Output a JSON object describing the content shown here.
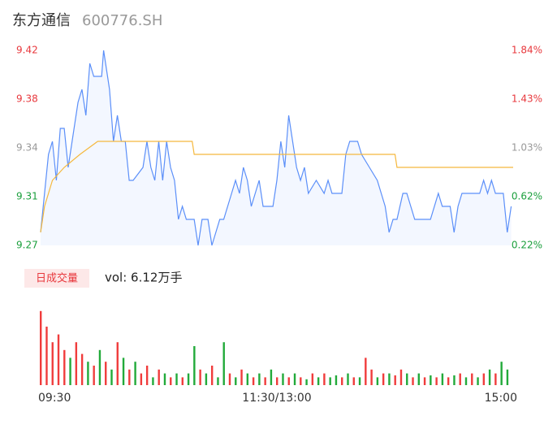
{
  "chart_data": [
    {
      "type": "line",
      "title": "东方通信",
      "subtitle": "600776.SH",
      "xlim": [
        0,
        240
      ],
      "xticks": [
        {
          "value": 0,
          "label": "09:30"
        },
        {
          "value": 120,
          "label": "11:30/13:00"
        },
        {
          "value": 240,
          "label": "15:00"
        }
      ],
      "ylim": [
        9.27,
        9.42
      ],
      "yticks": [
        9.42,
        {
          "value": 9.3825,
          "label": "9.38"
        },
        {
          "value": 9.345,
          "label": "9.34"
        },
        {
          "value": 9.3075,
          "label": "9.31"
        },
        9.27
      ],
      "y2lim": [
        0.22,
        1.84
      ],
      "y2ticks": [
        {
          "value": 1.84,
          "label": "1.84%"
        },
        {
          "value": 1.435,
          "label": "1.43%"
        },
        {
          "value": 1.03,
          "label": "1.03%"
        },
        {
          "value": 0.625,
          "label": "0.62%"
        },
        {
          "value": 0.22,
          "label": "0.22%"
        }
      ],
      "up_color": "#e8383d",
      "flat_color": "#999999",
      "down_color": "#1a9f3c",
      "series": [
        {
          "name": "price",
          "color": "#5b8ff9",
          "fill": "#f3f7ff",
          "x": [
            0,
            2,
            4,
            6,
            8,
            10,
            12,
            14,
            16,
            19,
            21,
            23,
            25,
            27,
            29,
            31,
            32,
            35,
            37,
            39,
            41,
            43,
            45,
            47,
            52,
            54,
            56,
            58,
            60,
            62,
            64,
            66,
            68,
            70,
            72,
            74,
            78,
            80,
            82,
            85,
            87,
            89,
            91,
            93,
            95,
            97,
            99,
            101,
            103,
            105,
            107,
            111,
            113,
            115,
            118,
            120,
            122,
            124,
            126,
            128,
            130,
            132,
            134,
            136,
            140,
            144,
            146,
            148,
            153,
            155,
            157,
            161,
            163,
            167,
            171,
            173,
            175,
            177,
            179,
            181,
            184,
            186,
            188,
            190,
            194,
            198,
            202,
            204,
            208,
            210,
            212,
            214,
            219,
            223,
            225,
            227,
            229,
            231,
            235,
            237,
            239
          ],
          "values": [
            9.28,
            9.31,
            9.34,
            9.35,
            9.32,
            9.36,
            9.36,
            9.33,
            9.35,
            9.38,
            9.39,
            9.37,
            9.41,
            9.4,
            9.4,
            9.4,
            9.42,
            9.39,
            9.35,
            9.37,
            9.35,
            9.35,
            9.32,
            9.32,
            9.33,
            9.35,
            9.33,
            9.32,
            9.35,
            9.32,
            9.35,
            9.33,
            9.32,
            9.29,
            9.3,
            9.29,
            9.29,
            9.27,
            9.29,
            9.29,
            9.27,
            9.28,
            9.29,
            9.29,
            9.3,
            9.31,
            9.32,
            9.31,
            9.33,
            9.32,
            9.3,
            9.32,
            9.3,
            9.3,
            9.3,
            9.32,
            9.35,
            9.33,
            9.37,
            9.35,
            9.33,
            9.32,
            9.33,
            9.31,
            9.32,
            9.31,
            9.32,
            9.31,
            9.31,
            9.34,
            9.35,
            9.35,
            9.34,
            9.33,
            9.32,
            9.31,
            9.3,
            9.28,
            9.29,
            9.29,
            9.31,
            9.31,
            9.3,
            9.29,
            9.29,
            9.29,
            9.31,
            9.3,
            9.3,
            9.28,
            9.3,
            9.31,
            9.31,
            9.31,
            9.32,
            9.31,
            9.32,
            9.31,
            9.31,
            9.28,
            9.3
          ]
        },
        {
          "name": "average",
          "color": "#f5b83d",
          "x": [
            0,
            2,
            4,
            6,
            12,
            20,
            29,
            77,
            78,
            180,
            181,
            240
          ],
          "values": [
            9.28,
            9.3,
            9.31,
            9.32,
            9.33,
            9.34,
            9.35,
            9.35,
            9.34,
            9.34,
            9.33,
            9.33
          ]
        }
      ]
    },
    {
      "type": "bar",
      "title": "日成交量",
      "annotation": "vol: 6.12万手",
      "ylim": [
        0,
        2000
      ],
      "up_color": "#f03c3c",
      "down_color": "#22aa3a",
      "x": [
        0,
        3,
        6,
        9,
        12,
        15,
        18,
        21,
        24,
        27,
        30,
        33,
        36,
        39,
        42,
        45,
        48,
        51,
        54,
        57,
        60,
        63,
        66,
        69,
        72,
        75,
        78,
        81,
        84,
        87,
        90,
        93,
        96,
        99,
        102,
        105,
        108,
        111,
        114,
        117,
        120,
        123,
        126,
        129,
        132,
        135,
        138,
        141,
        144,
        147,
        150,
        153,
        156,
        159,
        162,
        165,
        168,
        171,
        174,
        177,
        180,
        183,
        186,
        189,
        192,
        195,
        198,
        201,
        204,
        207,
        210,
        213,
        216,
        219,
        222,
        225,
        228,
        231,
        234,
        237
      ],
      "values": [
        1900,
        1500,
        1100,
        1300,
        900,
        700,
        1100,
        800,
        600,
        500,
        900,
        600,
        400,
        1100,
        700,
        400,
        600,
        300,
        500,
        200,
        400,
        300,
        200,
        300,
        200,
        300,
        1000,
        400,
        300,
        500,
        200,
        1100,
        300,
        200,
        400,
        300,
        200,
        300,
        200,
        400,
        200,
        300,
        200,
        300,
        200,
        150,
        300,
        200,
        300,
        200,
        250,
        200,
        300,
        200,
        200,
        700,
        400,
        200,
        300,
        300,
        250,
        400,
        300,
        200,
        300,
        200,
        250,
        200,
        300,
        200,
        250,
        300,
        200,
        300,
        200,
        300,
        400,
        300,
        600,
        400
      ],
      "up": [
        true,
        true,
        true,
        true,
        true,
        false,
        true,
        true,
        false,
        true,
        false,
        true,
        false,
        true,
        false,
        true,
        false,
        true,
        true,
        false,
        true,
        false,
        true,
        false,
        true,
        false,
        false,
        true,
        false,
        true,
        false,
        false,
        true,
        false,
        true,
        false,
        true,
        false,
        true,
        false,
        true,
        false,
        true,
        false,
        true,
        false,
        true,
        false,
        true,
        false,
        false,
        true,
        false,
        true,
        false,
        true,
        true,
        false,
        true,
        false,
        true,
        true,
        false,
        true,
        false,
        true,
        false,
        true,
        false,
        true,
        false,
        true,
        false,
        true,
        false,
        true,
        false,
        true,
        false,
        false
      ]
    }
  ]
}
